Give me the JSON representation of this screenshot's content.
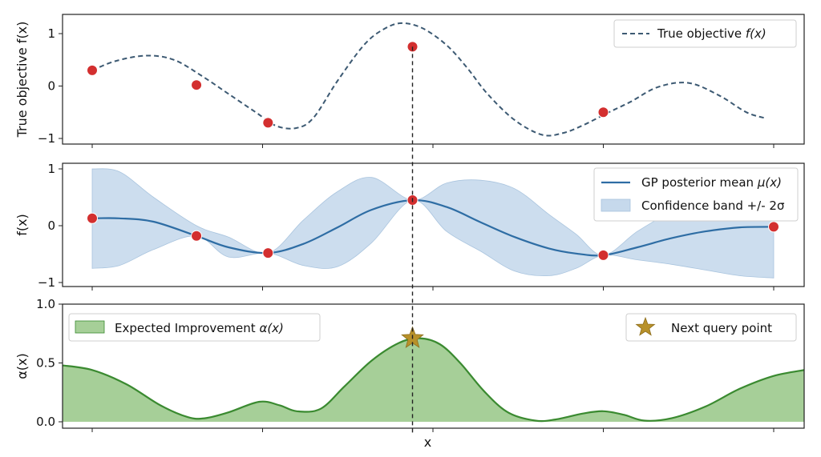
{
  "chart_data": [
    {
      "type": "line",
      "panel": "top",
      "ylabel": "True objective f(x)",
      "ylim": [
        -1.05,
        1.05
      ],
      "yticks": [
        1,
        0,
        -1
      ],
      "ytick_labels": [
        "1",
        "0",
        "−1"
      ],
      "xlim": [
        0,
        10
      ],
      "xticks": [
        0,
        2.5,
        5,
        7.5,
        10
      ],
      "grid": false,
      "legend_position": "top-right",
      "series": [
        {
          "name": "True objective f(x)",
          "style": "dashed",
          "color": "#3d5a73",
          "x": [
            0,
            0.35,
            0.8,
            1.2,
            1.6,
            2.0,
            2.4,
            2.7,
            3.0,
            3.25,
            3.6,
            4.0,
            4.3,
            4.55,
            4.85,
            5.2,
            5.5,
            5.8,
            6.2,
            6.6,
            6.9,
            7.2,
            7.55,
            7.9,
            8.3,
            8.75,
            9.2,
            9.6,
            9.9
          ],
          "y": [
            0.3,
            0.48,
            0.58,
            0.5,
            0.2,
            -0.15,
            -0.5,
            -0.76,
            -0.8,
            -0.6,
            0.1,
            0.8,
            1.1,
            1.2,
            1.1,
            0.78,
            0.35,
            -0.15,
            -0.65,
            -0.93,
            -0.9,
            -0.75,
            -0.52,
            -0.3,
            -0.02,
            0.06,
            -0.18,
            -0.5,
            -0.62
          ]
        }
      ],
      "points": {
        "color": "#d32f2f",
        "x": [
          0,
          1.53,
          2.58,
          4.7,
          7.5
        ],
        "y": [
          0.3,
          0.02,
          -0.7,
          0.75,
          -0.5
        ]
      },
      "legend": [
        {
          "label": "True objective ",
          "label_italic": "f(x)",
          "marker": "dashed-line"
        }
      ]
    },
    {
      "type": "area",
      "panel": "middle",
      "ylabel": "f(x)",
      "ylim": [
        -1.05,
        1.05
      ],
      "yticks": [
        1,
        0,
        -1
      ],
      "ytick_labels": [
        "1",
        "0",
        "−1"
      ],
      "xlim": [
        0,
        10
      ],
      "xticks": [
        0,
        2.5,
        5,
        7.5,
        10
      ],
      "grid": false,
      "legend_position": "top-right",
      "series": [
        {
          "name": "GP posterior mean μ(x)",
          "color": "#2e6da4",
          "x": [
            0,
            0.4,
            0.9,
            1.53,
            2.0,
            2.58,
            3.1,
            3.6,
            4.1,
            4.7,
            5.2,
            5.7,
            6.2,
            6.7,
            7.1,
            7.5,
            8.0,
            8.5,
            9.0,
            9.5,
            10
          ],
          "mean": [
            0.13,
            0.13,
            0.07,
            -0.18,
            -0.38,
            -0.48,
            -0.32,
            -0.03,
            0.28,
            0.45,
            0.33,
            0.06,
            -0.2,
            -0.4,
            -0.49,
            -0.52,
            -0.38,
            -0.22,
            -0.1,
            -0.03,
            -0.02
          ],
          "upper": [
            1.0,
            0.95,
            0.5,
            0.0,
            -0.2,
            -0.48,
            0.1,
            0.6,
            0.85,
            0.45,
            0.75,
            0.8,
            0.65,
            0.2,
            -0.15,
            -0.52,
            -0.1,
            0.25,
            0.55,
            0.8,
            0.92
          ],
          "lower": [
            -0.75,
            -0.7,
            -0.42,
            -0.18,
            -0.55,
            -0.48,
            -0.7,
            -0.72,
            -0.3,
            0.45,
            -0.1,
            -0.45,
            -0.8,
            -0.88,
            -0.75,
            -0.52,
            -0.6,
            -0.68,
            -0.78,
            -0.88,
            -0.92
          ]
        }
      ],
      "points": {
        "color": "#d32f2f",
        "x": [
          0,
          1.53,
          2.58,
          4.7,
          7.5,
          10
        ],
        "y": [
          0.13,
          -0.18,
          -0.48,
          0.45,
          -0.52,
          -0.02
        ]
      },
      "legend": [
        {
          "label": "GP posterior mean ",
          "label_italic": "μ(x)",
          "marker": "solid-line"
        },
        {
          "label": "Confidence band +/- 2σ",
          "label_italic": "",
          "marker": "patch"
        }
      ]
    },
    {
      "type": "area",
      "panel": "bottom",
      "ylabel": "α(x)",
      "xlabel": "x",
      "ylim": [
        -0.02,
        1.0
      ],
      "yticks": [
        1.0,
        0.5,
        0.0
      ],
      "ytick_labels": [
        "1.0",
        "0.5",
        "0.0"
      ],
      "xlim": [
        0,
        10
      ],
      "xticks": [
        0,
        2.5,
        5,
        7.5,
        10
      ],
      "grid": false,
      "series": [
        {
          "name": "Expected Improvement α(x)",
          "color": "#3a8a30",
          "fill": "#a6cf98",
          "x": [
            -0.45,
            0,
            0.5,
            1.0,
            1.4,
            1.65,
            2.0,
            2.45,
            2.75,
            3.0,
            3.35,
            3.7,
            4.1,
            4.5,
            4.8,
            5.1,
            5.4,
            5.75,
            6.1,
            6.5,
            6.8,
            7.2,
            7.5,
            7.8,
            8.1,
            8.5,
            9.0,
            9.5,
            10.0,
            10.45
          ],
          "y": [
            0.48,
            0.44,
            0.32,
            0.14,
            0.04,
            0.03,
            0.08,
            0.17,
            0.14,
            0.09,
            0.11,
            0.3,
            0.52,
            0.67,
            0.71,
            0.66,
            0.5,
            0.26,
            0.08,
            0.01,
            0.02,
            0.07,
            0.09,
            0.06,
            0.01,
            0.03,
            0.13,
            0.28,
            0.39,
            0.44
          ]
        }
      ],
      "next_query_point": {
        "x": 4.7,
        "y": 0.71,
        "color": "#b8912a"
      },
      "legend": [
        {
          "label": "Expected Improvement ",
          "label_italic": "α(x)",
          "marker": "patch",
          "position": "top-left"
        },
        {
          "label": "Next query point",
          "label_italic": "",
          "marker": "star",
          "position": "top-right"
        }
      ]
    }
  ],
  "query_line_x": 4.7,
  "colors": {
    "objective": "#3d5a73",
    "observed": "#d32f2f",
    "gp_mean": "#2e6da4",
    "band": "#c6d9ec",
    "ei_line": "#3a8a30",
    "ei_fill": "#a6cf98",
    "star": "#b8912a"
  }
}
